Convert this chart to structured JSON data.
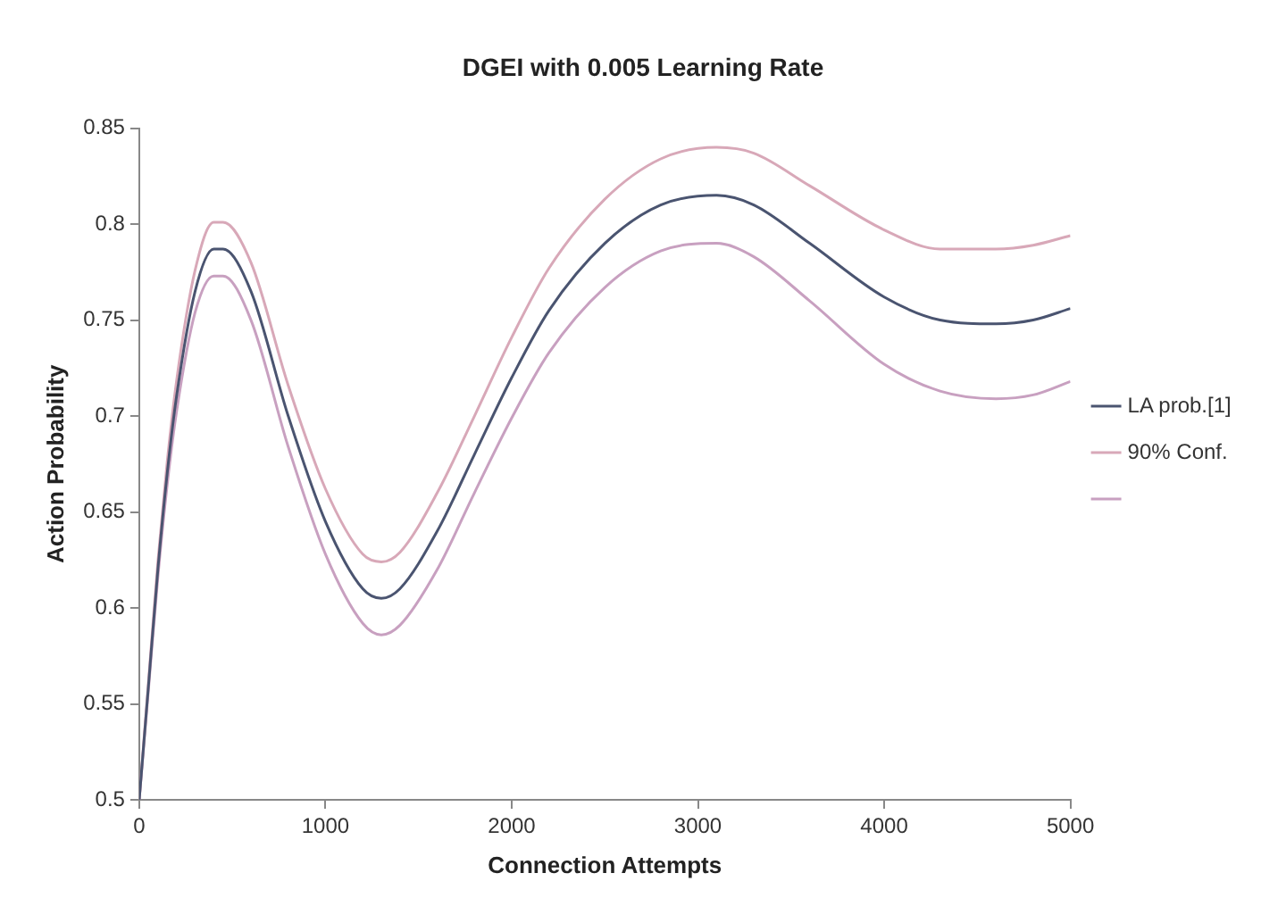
{
  "chart_data": {
    "type": "line",
    "title": "DGEI with 0.005 Learning Rate",
    "xlabel": "Connection Attempts",
    "ylabel": "Action Probability",
    "x": [
      0,
      50,
      100,
      150,
      200,
      300,
      400,
      450,
      600,
      800,
      1000,
      1200,
      1300,
      1400,
      1600,
      1800,
      2000,
      2200,
      2500,
      2800,
      3100,
      3300,
      3600,
      4000,
      4300,
      4600,
      4800,
      5000
    ],
    "series": [
      {
        "name": "LA prob.[1]",
        "color": "#4a5470",
        "values": [
          0.5,
          0.56,
          0.62,
          0.67,
          0.71,
          0.765,
          0.787,
          0.787,
          0.765,
          0.7,
          0.645,
          0.61,
          0.605,
          0.61,
          0.64,
          0.68,
          0.72,
          0.755,
          0.79,
          0.81,
          0.815,
          0.81,
          0.79,
          0.762,
          0.75,
          0.748,
          0.75,
          0.756
        ]
      },
      {
        "name": "90% Conf.",
        "color": "#d8a8b8",
        "values": [
          0.5,
          0.562,
          0.624,
          0.676,
          0.718,
          0.776,
          0.801,
          0.801,
          0.78,
          0.716,
          0.662,
          0.628,
          0.624,
          0.629,
          0.66,
          0.7,
          0.741,
          0.777,
          0.813,
          0.834,
          0.84,
          0.837,
          0.82,
          0.797,
          0.787,
          0.787,
          0.789,
          0.794
        ]
      },
      {
        "color": "#c8a0c0",
        "values": [
          0.5,
          0.558,
          0.616,
          0.664,
          0.702,
          0.754,
          0.773,
          0.773,
          0.75,
          0.684,
          0.628,
          0.592,
          0.586,
          0.591,
          0.62,
          0.66,
          0.699,
          0.733,
          0.767,
          0.786,
          0.79,
          0.783,
          0.76,
          0.727,
          0.713,
          0.709,
          0.711,
          0.718
        ]
      }
    ],
    "xlim": [
      0,
      5000
    ],
    "xticks": [
      0,
      1000,
      2000,
      3000,
      4000,
      5000
    ],
    "ylim": [
      0.5,
      0.85
    ],
    "yticks": [
      0.5,
      0.55,
      0.6,
      0.65,
      0.7,
      0.75,
      0.8,
      0.85
    ],
    "grid": false,
    "legend": "right",
    "marker": "none",
    "line_style": "solid"
  }
}
